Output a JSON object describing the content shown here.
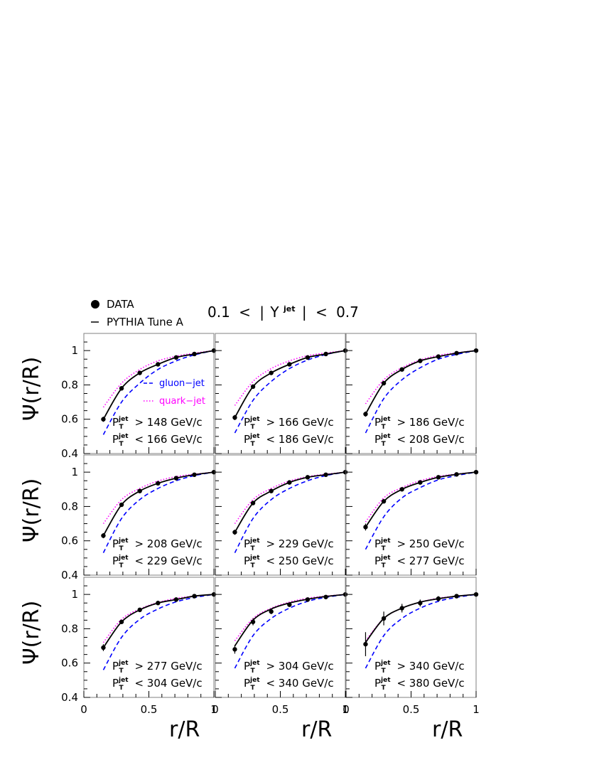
{
  "header": {
    "legend_data_label": "DATA",
    "legend_mc_label": "PYTHIA Tune A",
    "rapidity_range": {
      "low": "0.1",
      "lt1": "<",
      "abs_open": "|",
      "var": "Y",
      "var_sup": "jet",
      "abs_close": "|",
      "lt2": "<",
      "high": "0.7"
    }
  },
  "axes": {
    "ylabel": {
      "psi": "Ψ",
      "args": "(r/R)"
    },
    "xlabel": "r/R",
    "y_ticks": [
      "0.4",
      "0.6",
      "0.8",
      "1"
    ],
    "x_ticks": [
      "0",
      "0.5",
      "1"
    ]
  },
  "labels": {
    "gluon": "gluon−jet",
    "quark": "quark−jet",
    "pt_letter": "P",
    "pt_sub": "T",
    "pt_sup": "jet",
    "gt": ">",
    "lt": "<",
    "unit": "GeV/c"
  },
  "colors": {
    "data": "#000000",
    "pythia": "#000000",
    "gluon": "#0000ff",
    "quark": "#ff00ff",
    "frame": "#808080"
  },
  "chart_data": {
    "type": "line",
    "xlim": [
      0,
      1
    ],
    "ylim": [
      0.4,
      1.1
    ],
    "grid": false,
    "x": [
      0.15,
      0.29,
      0.43,
      0.57,
      0.71,
      0.85,
      1.0
    ],
    "panels": [
      {
        "pt_low": "148",
        "pt_high": "166",
        "data": [
          0.6,
          0.78,
          0.87,
          0.92,
          0.96,
          0.98,
          1.0
        ],
        "err": [
          0.015,
          0.01,
          0.008,
          0.006,
          0.005,
          0.004,
          0
        ],
        "pythia": [
          0.6,
          0.78,
          0.87,
          0.92,
          0.96,
          0.98,
          1.0
        ],
        "gluon": [
          0.51,
          0.7,
          0.81,
          0.89,
          0.94,
          0.975,
          1.0
        ],
        "quark": [
          0.67,
          0.81,
          0.89,
          0.94,
          0.967,
          0.985,
          1.0
        ]
      },
      {
        "pt_low": "166",
        "pt_high": "186",
        "data": [
          0.61,
          0.79,
          0.87,
          0.92,
          0.96,
          0.98,
          1.0
        ],
        "err": [
          0.015,
          0.01,
          0.008,
          0.006,
          0.005,
          0.004,
          0
        ],
        "pythia": [
          0.61,
          0.79,
          0.87,
          0.92,
          0.96,
          0.98,
          1.0
        ],
        "gluon": [
          0.52,
          0.71,
          0.82,
          0.895,
          0.945,
          0.977,
          1.0
        ],
        "quark": [
          0.68,
          0.82,
          0.895,
          0.94,
          0.97,
          0.986,
          1.0
        ]
      },
      {
        "pt_low": "186",
        "pt_high": "208",
        "data": [
          0.63,
          0.81,
          0.89,
          0.94,
          0.965,
          0.985,
          1.0
        ],
        "err": [
          0.015,
          0.01,
          0.008,
          0.006,
          0.005,
          0.004,
          0
        ],
        "pythia": [
          0.63,
          0.81,
          0.89,
          0.94,
          0.965,
          0.985,
          1.0
        ],
        "gluon": [
          0.52,
          0.72,
          0.83,
          0.9,
          0.95,
          0.978,
          1.0
        ],
        "quark": [
          0.69,
          0.83,
          0.9,
          0.945,
          0.972,
          0.987,
          1.0
        ]
      },
      {
        "pt_low": "208",
        "pt_high": "229",
        "data": [
          0.63,
          0.81,
          0.89,
          0.935,
          0.965,
          0.985,
          1.0
        ],
        "err": [
          0.015,
          0.01,
          0.008,
          0.006,
          0.005,
          0.004,
          0
        ],
        "pythia": [
          0.63,
          0.81,
          0.89,
          0.935,
          0.965,
          0.985,
          1.0
        ],
        "gluon": [
          0.53,
          0.73,
          0.84,
          0.905,
          0.95,
          0.98,
          1.0
        ],
        "quark": [
          0.7,
          0.84,
          0.905,
          0.948,
          0.974,
          0.988,
          1.0
        ]
      },
      {
        "pt_low": "229",
        "pt_high": "250",
        "data": [
          0.65,
          0.82,
          0.89,
          0.94,
          0.97,
          0.985,
          1.0
        ],
        "err": [
          0.015,
          0.01,
          0.008,
          0.006,
          0.005,
          0.004,
          0
        ],
        "pythia": [
          0.65,
          0.82,
          0.89,
          0.94,
          0.97,
          0.985,
          1.0
        ],
        "gluon": [
          0.53,
          0.73,
          0.84,
          0.905,
          0.95,
          0.98,
          1.0
        ],
        "quark": [
          0.7,
          0.84,
          0.905,
          0.948,
          0.974,
          0.988,
          1.0
        ]
      },
      {
        "pt_low": "250",
        "pt_high": "277",
        "data": [
          0.68,
          0.83,
          0.9,
          0.94,
          0.97,
          0.987,
          1.0
        ],
        "err": [
          0.02,
          0.012,
          0.01,
          0.007,
          0.006,
          0.004,
          0
        ],
        "pythia": [
          0.68,
          0.83,
          0.9,
          0.94,
          0.97,
          0.987,
          1.0
        ],
        "gluon": [
          0.55,
          0.74,
          0.85,
          0.91,
          0.955,
          0.98,
          1.0
        ],
        "quark": [
          0.71,
          0.85,
          0.91,
          0.95,
          0.975,
          0.989,
          1.0
        ]
      },
      {
        "pt_low": "277",
        "pt_high": "304",
        "data": [
          0.69,
          0.84,
          0.91,
          0.95,
          0.97,
          0.99,
          1.0
        ],
        "err": [
          0.02,
          0.012,
          0.01,
          0.007,
          0.006,
          0.004,
          0
        ],
        "pythia": [
          0.69,
          0.84,
          0.91,
          0.95,
          0.97,
          0.99,
          1.0
        ],
        "gluon": [
          0.56,
          0.75,
          0.855,
          0.915,
          0.957,
          0.982,
          1.0
        ],
        "quark": [
          0.72,
          0.855,
          0.915,
          0.953,
          0.977,
          0.99,
          1.0
        ]
      },
      {
        "pt_low": "304",
        "pt_high": "340",
        "data": [
          0.68,
          0.84,
          0.9,
          0.94,
          0.97,
          0.985,
          1.0
        ],
        "err": [
          0.025,
          0.02,
          0.015,
          0.01,
          0.008,
          0.005,
          0
        ],
        "pythia": [
          0.7,
          0.85,
          0.915,
          0.95,
          0.972,
          0.988,
          1.0
        ],
        "gluon": [
          0.57,
          0.76,
          0.86,
          0.92,
          0.96,
          0.983,
          1.0
        ],
        "quark": [
          0.73,
          0.86,
          0.92,
          0.955,
          0.978,
          0.99,
          1.0
        ]
      },
      {
        "pt_low": "340",
        "pt_high": "380",
        "data": [
          0.71,
          0.86,
          0.92,
          0.95,
          0.975,
          0.99,
          1.0
        ],
        "err": [
          0.07,
          0.04,
          0.025,
          0.02,
          0.015,
          0.01,
          0
        ],
        "pythia": [
          0.72,
          0.86,
          0.92,
          0.955,
          0.975,
          0.99,
          1.0
        ],
        "gluon": [
          0.57,
          0.76,
          0.86,
          0.92,
          0.96,
          0.983,
          1.0
        ],
        "quark": [
          0.73,
          0.86,
          0.92,
          0.955,
          0.978,
          0.99,
          1.0
        ]
      }
    ]
  }
}
